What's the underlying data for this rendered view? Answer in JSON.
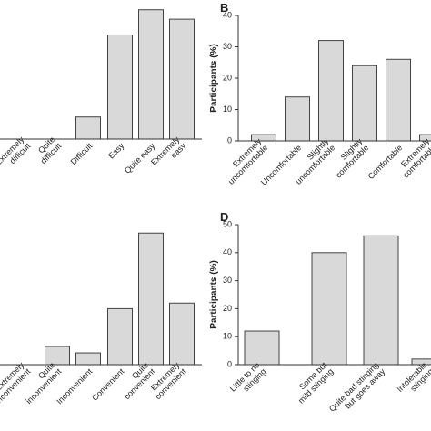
{
  "chart_data": [
    {
      "type": "bar",
      "categories": [
        "Extremely\ndifficult",
        "Quite\ndifficult",
        "Difficult",
        "Easy",
        "Quite easy",
        "Extremely\neasy"
      ],
      "values": [
        0,
        0,
        7,
        33,
        41,
        38
      ],
      "color": "#d9d9d9",
      "ylim": [
        0,
        44
      ]
    },
    {
      "type": "bar",
      "label": "B",
      "ylabel": "Participants (%)",
      "categories": [
        "Extremely\nuncomfortable",
        "Uncomfortable",
        "Slightly\nuncomfortable",
        "Slightly\ncomfortable",
        "Comfortable",
        "Extremely\ncomfortable"
      ],
      "values": [
        2,
        14,
        32,
        24,
        26,
        2
      ],
      "color": "#d9d9d9",
      "ylim": [
        0,
        40
      ],
      "yticks": [
        0,
        10,
        20,
        30,
        40
      ]
    },
    {
      "type": "bar",
      "categories": [
        "Extremely\ninconvenient",
        "Quite\ninconvenient",
        "Inconvenient",
        "Convenient",
        "Quite\nconvenient",
        "Extremely\nconvenient"
      ],
      "values": [
        0,
        6.5,
        4.2,
        20,
        47,
        22
      ],
      "color": "#d9d9d9",
      "ylim": [
        0,
        50
      ]
    },
    {
      "type": "bar",
      "label": "D",
      "ylabel": "Participants (%)",
      "categories": [
        "Little to no\nstinging",
        "Some but\nmild stinging",
        "Quite bad stinging\nbut goes away",
        "Intolerable\nstinging"
      ],
      "values": [
        12,
        40,
        46,
        2
      ],
      "color": "#d9d9d9",
      "ylim": [
        0,
        50
      ],
      "yticks": [
        0,
        10,
        20,
        30,
        40,
        50
      ]
    }
  ]
}
